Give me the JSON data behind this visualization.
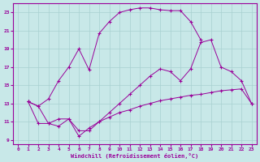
{
  "xlabel": "Windchill (Refroidissement éolien,°C)",
  "bg_color": "#c8e8e8",
  "grid_color": "#a8d0d0",
  "line_color": "#990099",
  "xlim": [
    -0.5,
    23.5
  ],
  "ylim": [
    8.5,
    24.0
  ],
  "xticks": [
    0,
    1,
    2,
    3,
    4,
    5,
    6,
    7,
    8,
    9,
    10,
    11,
    12,
    13,
    14,
    15,
    16,
    17,
    18,
    19,
    20,
    21,
    22,
    23
  ],
  "yticks": [
    9,
    11,
    13,
    15,
    17,
    19,
    21,
    23
  ],
  "series": [
    {
      "x": [
        1,
        2,
        3,
        4,
        5,
        6,
        7,
        8,
        9,
        10,
        11,
        12,
        13,
        14,
        15,
        16,
        17,
        18
      ],
      "y": [
        13.2,
        12.7,
        13.5,
        15.5,
        17.0,
        19.0,
        16.7,
        20.7,
        22.0,
        23.0,
        23.3,
        23.5,
        23.5,
        23.3,
        23.2,
        23.2,
        22.0,
        20.0
      ]
    },
    {
      "x": [
        1,
        2,
        3,
        4,
        5,
        6,
        7,
        8,
        9,
        10,
        11,
        12,
        13,
        14,
        15,
        16,
        17,
        18,
        19,
        20,
        21,
        22,
        23
      ],
      "y": [
        13.2,
        12.7,
        10.8,
        11.3,
        11.3,
        10.0,
        10.0,
        11.0,
        12.0,
        13.0,
        14.0,
        15.0,
        16.0,
        16.8,
        16.5,
        15.5,
        16.8,
        19.7,
        20.0,
        17.0,
        16.5,
        15.5,
        13.0
      ]
    },
    {
      "x": [
        1,
        2,
        3,
        4,
        5,
        6,
        7,
        8,
        9,
        10,
        11,
        12,
        13,
        14,
        15,
        16,
        17,
        18,
        19,
        20,
        21,
        22,
        23
      ],
      "y": [
        13.2,
        10.8,
        10.8,
        10.5,
        11.3,
        9.4,
        10.3,
        11.0,
        11.5,
        12.0,
        12.3,
        12.7,
        13.0,
        13.3,
        13.5,
        13.7,
        13.9,
        14.0,
        14.2,
        14.4,
        14.5,
        14.6,
        13.0
      ]
    }
  ]
}
